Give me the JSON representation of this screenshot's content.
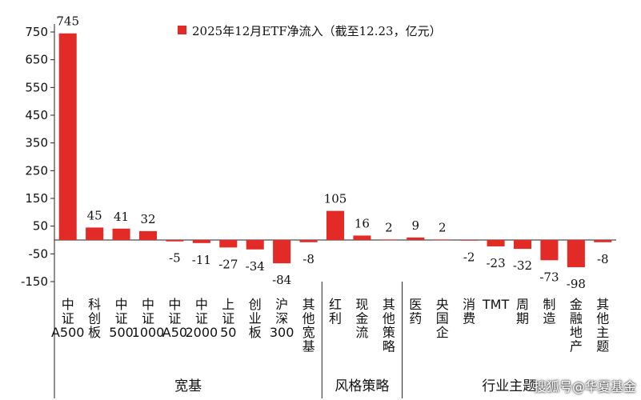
{
  "chart_data": {
    "type": "bar",
    "title": "2025年12月ETF净流入（截至12.23，亿元）",
    "ylim": [
      -200,
      780
    ],
    "yticks": [
      750,
      650,
      550,
      450,
      350,
      250,
      150,
      50,
      -50,
      -150
    ],
    "bar_color": "#e22a27",
    "legend_position": "top",
    "grid": false,
    "series": [
      {
        "name": "2025年12月ETF净流入（截至12.23，亿元）",
        "values": [
          745,
          45,
          41,
          32,
          -5,
          -11,
          -27,
          -34,
          -84,
          -8,
          105,
          16,
          2,
          9,
          2,
          -2,
          -23,
          -32,
          -73,
          -98,
          -8
        ]
      }
    ],
    "categories": [
      "中证A500",
      "科创板",
      "中证500",
      "中证1000",
      "中证A50",
      "中证2000",
      "上证50",
      "创业板",
      "沪深300",
      "其他宽基",
      "红利",
      "现金流",
      "其他策略",
      "医药",
      "央国企",
      "消费",
      "TMT",
      "周期",
      "制造",
      "金融地产",
      "其他主题"
    ],
    "groups": [
      {
        "label": "宽基",
        "start": 0,
        "end": 9
      },
      {
        "label": "风格策略",
        "start": 10,
        "end": 12
      },
      {
        "label": "行业主题",
        "start": 13,
        "end": 20
      }
    ]
  },
  "watermark": "搜狐号@华夏基金"
}
